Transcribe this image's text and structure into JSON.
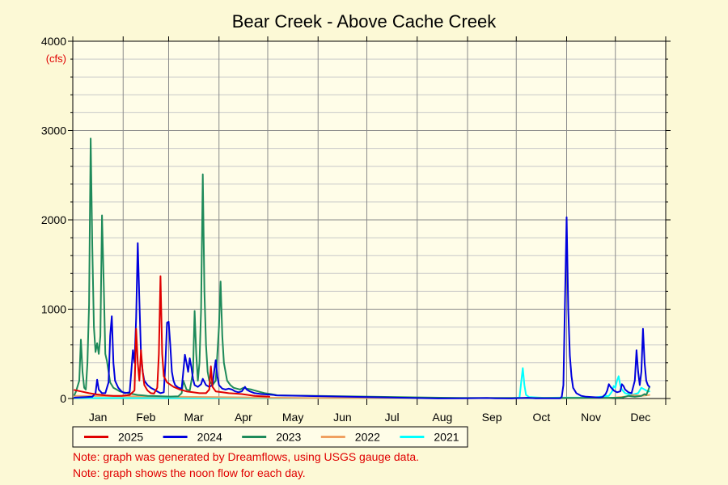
{
  "chart_data": {
    "type": "line",
    "title": "Bear Creek - Above Cache Creek",
    "unit_label": "(cfs)",
    "xlabel": "",
    "ylabel": "",
    "x_unit": "day of year",
    "ylim": [
      0,
      4000
    ],
    "y_ticks": [
      0,
      1000,
      2000,
      3000,
      4000
    ],
    "y_minor_step": 200,
    "grid": true,
    "legend_position": "bottom",
    "months": [
      "Jan",
      "Feb",
      "Mar",
      "Apr",
      "May",
      "Jun",
      "Jul",
      "Aug",
      "Sep",
      "Oct",
      "Nov",
      "Dec"
    ],
    "series": [
      {
        "name": "2025",
        "color": "#e00000",
        "points": [
          [
            1,
            95
          ],
          [
            5,
            80
          ],
          [
            10,
            60
          ],
          [
            15,
            45
          ],
          [
            20,
            35
          ],
          [
            25,
            30
          ],
          [
            30,
            30
          ],
          [
            35,
            40
          ],
          [
            38,
            90
          ],
          [
            39,
            780
          ],
          [
            40,
            400
          ],
          [
            41,
            200
          ],
          [
            42,
            540
          ],
          [
            43,
            300
          ],
          [
            44,
            150
          ],
          [
            46,
            90
          ],
          [
            48,
            60
          ],
          [
            50,
            55
          ],
          [
            52,
            120
          ],
          [
            53,
            500
          ],
          [
            54,
            1370
          ],
          [
            55,
            500
          ],
          [
            56,
            250
          ],
          [
            58,
            180
          ],
          [
            62,
            130
          ],
          [
            66,
            100
          ],
          [
            70,
            80
          ],
          [
            74,
            70
          ],
          [
            78,
            60
          ],
          [
            82,
            60
          ],
          [
            84,
            100
          ],
          [
            85,
            360
          ],
          [
            86,
            130
          ],
          [
            88,
            80
          ],
          [
            92,
            70
          ],
          [
            96,
            60
          ],
          [
            100,
            55
          ],
          [
            104,
            50
          ],
          [
            108,
            40
          ],
          [
            112,
            30
          ],
          [
            116,
            25
          ],
          [
            120,
            22
          ],
          [
            121,
            20
          ]
        ]
      },
      {
        "name": "2024",
        "color": "#0000dd",
        "points": [
          [
            1,
            10
          ],
          [
            8,
            15
          ],
          [
            12,
            20
          ],
          [
            14,
            60
          ],
          [
            15,
            210
          ],
          [
            16,
            100
          ],
          [
            18,
            60
          ],
          [
            20,
            60
          ],
          [
            22,
            180
          ],
          [
            23,
            700
          ],
          [
            24,
            920
          ],
          [
            25,
            400
          ],
          [
            26,
            200
          ],
          [
            28,
            120
          ],
          [
            30,
            80
          ],
          [
            32,
            60
          ],
          [
            35,
            70
          ],
          [
            36,
            300
          ],
          [
            37,
            540
          ],
          [
            38,
            400
          ],
          [
            39,
            900
          ],
          [
            40,
            1740
          ],
          [
            41,
            1100
          ],
          [
            42,
            500
          ],
          [
            43,
            300
          ],
          [
            44,
            200
          ],
          [
            46,
            150
          ],
          [
            48,
            120
          ],
          [
            50,
            100
          ],
          [
            52,
            80
          ],
          [
            54,
            60
          ],
          [
            56,
            70
          ],
          [
            57,
            400
          ],
          [
            58,
            850
          ],
          [
            59,
            860
          ],
          [
            60,
            600
          ],
          [
            61,
            300
          ],
          [
            62,
            200
          ],
          [
            63,
            150
          ],
          [
            65,
            120
          ],
          [
            67,
            110
          ],
          [
            68,
            300
          ],
          [
            69,
            490
          ],
          [
            70,
            400
          ],
          [
            71,
            300
          ],
          [
            72,
            450
          ],
          [
            73,
            350
          ],
          [
            74,
            220
          ],
          [
            75,
            150
          ],
          [
            77,
            130
          ],
          [
            79,
            160
          ],
          [
            80,
            220
          ],
          [
            82,
            150
          ],
          [
            84,
            130
          ],
          [
            86,
            150
          ],
          [
            87,
            300
          ],
          [
            88,
            430
          ],
          [
            89,
            250
          ],
          [
            90,
            150
          ],
          [
            92,
            110
          ],
          [
            94,
            100
          ],
          [
            96,
            110
          ],
          [
            98,
            100
          ],
          [
            100,
            80
          ],
          [
            102,
            70
          ],
          [
            104,
            80
          ],
          [
            106,
            130
          ],
          [
            107,
            100
          ],
          [
            109,
            80
          ],
          [
            112,
            60
          ],
          [
            116,
            50
          ],
          [
            120,
            45
          ],
          [
            124,
            40
          ],
          [
            125,
            35
          ],
          [
            225,
            1
          ],
          [
            240,
            2
          ],
          [
            255,
            5
          ],
          [
            260,
            3
          ],
          [
            270,
            1
          ],
          [
            280,
            8
          ],
          [
            285,
            3
          ],
          [
            300,
            3
          ],
          [
            301,
            20
          ],
          [
            302,
            150
          ],
          [
            303,
            1100
          ],
          [
            304,
            2030
          ],
          [
            305,
            1000
          ],
          [
            306,
            480
          ],
          [
            307,
            250
          ],
          [
            308,
            120
          ],
          [
            310,
            60
          ],
          [
            313,
            30
          ],
          [
            316,
            20
          ],
          [
            320,
            15
          ],
          [
            324,
            12
          ],
          [
            326,
            15
          ],
          [
            328,
            50
          ],
          [
            329,
            90
          ],
          [
            330,
            160
          ],
          [
            331,
            130
          ],
          [
            333,
            90
          ],
          [
            335,
            70
          ],
          [
            337,
            80
          ],
          [
            338,
            160
          ],
          [
            339,
            140
          ],
          [
            340,
            100
          ],
          [
            342,
            70
          ],
          [
            344,
            60
          ],
          [
            346,
            200
          ],
          [
            347,
            540
          ],
          [
            348,
            300
          ],
          [
            349,
            150
          ],
          [
            350,
            300
          ],
          [
            351,
            780
          ],
          [
            352,
            400
          ],
          [
            353,
            200
          ],
          [
            354,
            150
          ],
          [
            355,
            130
          ]
        ]
      },
      {
        "name": "2023",
        "color": "#1e8a5a",
        "points": [
          [
            1,
            40
          ],
          [
            2,
            80
          ],
          [
            4,
            200
          ],
          [
            5,
            660
          ],
          [
            6,
            300
          ],
          [
            7,
            120
          ],
          [
            8,
            100
          ],
          [
            9,
            400
          ],
          [
            10,
            1050
          ],
          [
            11,
            2910
          ],
          [
            12,
            1700
          ],
          [
            13,
            800
          ],
          [
            14,
            520
          ],
          [
            15,
            620
          ],
          [
            16,
            500
          ],
          [
            17,
            700
          ],
          [
            18,
            2050
          ],
          [
            19,
            1300
          ],
          [
            20,
            500
          ],
          [
            21,
            420
          ],
          [
            22,
            300
          ],
          [
            23,
            180
          ],
          [
            25,
            120
          ],
          [
            27,
            100
          ],
          [
            29,
            80
          ],
          [
            31,
            70
          ],
          [
            34,
            60
          ],
          [
            37,
            50
          ],
          [
            40,
            40
          ],
          [
            43,
            35
          ],
          [
            46,
            30
          ],
          [
            50,
            28
          ],
          [
            55,
            25
          ],
          [
            60,
            22
          ],
          [
            65,
            25
          ],
          [
            67,
            60
          ],
          [
            68,
            200
          ],
          [
            69,
            150
          ],
          [
            70,
            100
          ],
          [
            72,
            90
          ],
          [
            74,
            300
          ],
          [
            75,
            980
          ],
          [
            76,
            500
          ],
          [
            77,
            200
          ],
          [
            78,
            400
          ],
          [
            79,
            1000
          ],
          [
            80,
            2510
          ],
          [
            81,
            1200
          ],
          [
            82,
            600
          ],
          [
            83,
            300
          ],
          [
            84,
            200
          ],
          [
            86,
            150
          ],
          [
            88,
            200
          ],
          [
            89,
            500
          ],
          [
            90,
            800
          ],
          [
            91,
            1310
          ],
          [
            92,
            700
          ],
          [
            93,
            400
          ],
          [
            94,
            300
          ],
          [
            95,
            200
          ],
          [
            97,
            150
          ],
          [
            99,
            120
          ],
          [
            101,
            110
          ],
          [
            103,
            100
          ],
          [
            105,
            120
          ],
          [
            107,
            110
          ],
          [
            110,
            100
          ],
          [
            114,
            80
          ],
          [
            118,
            60
          ],
          [
            122,
            50
          ],
          [
            125,
            40
          ],
          [
            126,
            35
          ],
          [
            240,
            5
          ],
          [
            300,
            5
          ],
          [
            330,
            8
          ],
          [
            338,
            10
          ],
          [
            340,
            20
          ],
          [
            342,
            30
          ],
          [
            344,
            25
          ],
          [
            346,
            20
          ],
          [
            350,
            30
          ],
          [
            352,
            50
          ],
          [
            353,
            40
          ],
          [
            354,
            80
          ],
          [
            355,
            130
          ]
        ]
      },
      {
        "name": "2022",
        "color": "#f0a060",
        "points": [
          [
            1,
            30
          ],
          [
            30,
            25
          ],
          [
            60,
            20
          ],
          [
            90,
            15
          ],
          [
            120,
            10
          ],
          [
            150,
            5
          ],
          [
            180,
            5
          ],
          [
            210,
            5
          ],
          [
            240,
            5
          ],
          [
            270,
            5
          ],
          [
            300,
            5
          ],
          [
            330,
            5
          ],
          [
            340,
            20
          ],
          [
            345,
            40
          ],
          [
            350,
            30
          ],
          [
            355,
            40
          ]
        ]
      },
      {
        "name": "2021",
        "color": "#00ffff",
        "points": [
          [
            1,
            5
          ],
          [
            30,
            5
          ],
          [
            60,
            5
          ],
          [
            90,
            5
          ],
          [
            270,
            5
          ],
          [
            275,
            10
          ],
          [
            276,
            180
          ],
          [
            277,
            340
          ],
          [
            278,
            150
          ],
          [
            279,
            40
          ],
          [
            281,
            15
          ],
          [
            290,
            8
          ],
          [
            300,
            10
          ],
          [
            320,
            10
          ],
          [
            330,
            30
          ],
          [
            332,
            80
          ],
          [
            333,
            140
          ],
          [
            334,
            120
          ],
          [
            335,
            200
          ],
          [
            336,
            250
          ],
          [
            337,
            150
          ],
          [
            338,
            100
          ],
          [
            340,
            60
          ],
          [
            344,
            40
          ],
          [
            348,
            60
          ],
          [
            350,
            120
          ],
          [
            352,
            100
          ],
          [
            354,
            80
          ],
          [
            355,
            80
          ]
        ]
      }
    ]
  },
  "notes": [
    "Note: graph was generated by Dreamflows, using USGS gauge data.",
    "Note: graph shows the noon flow for each day."
  ]
}
